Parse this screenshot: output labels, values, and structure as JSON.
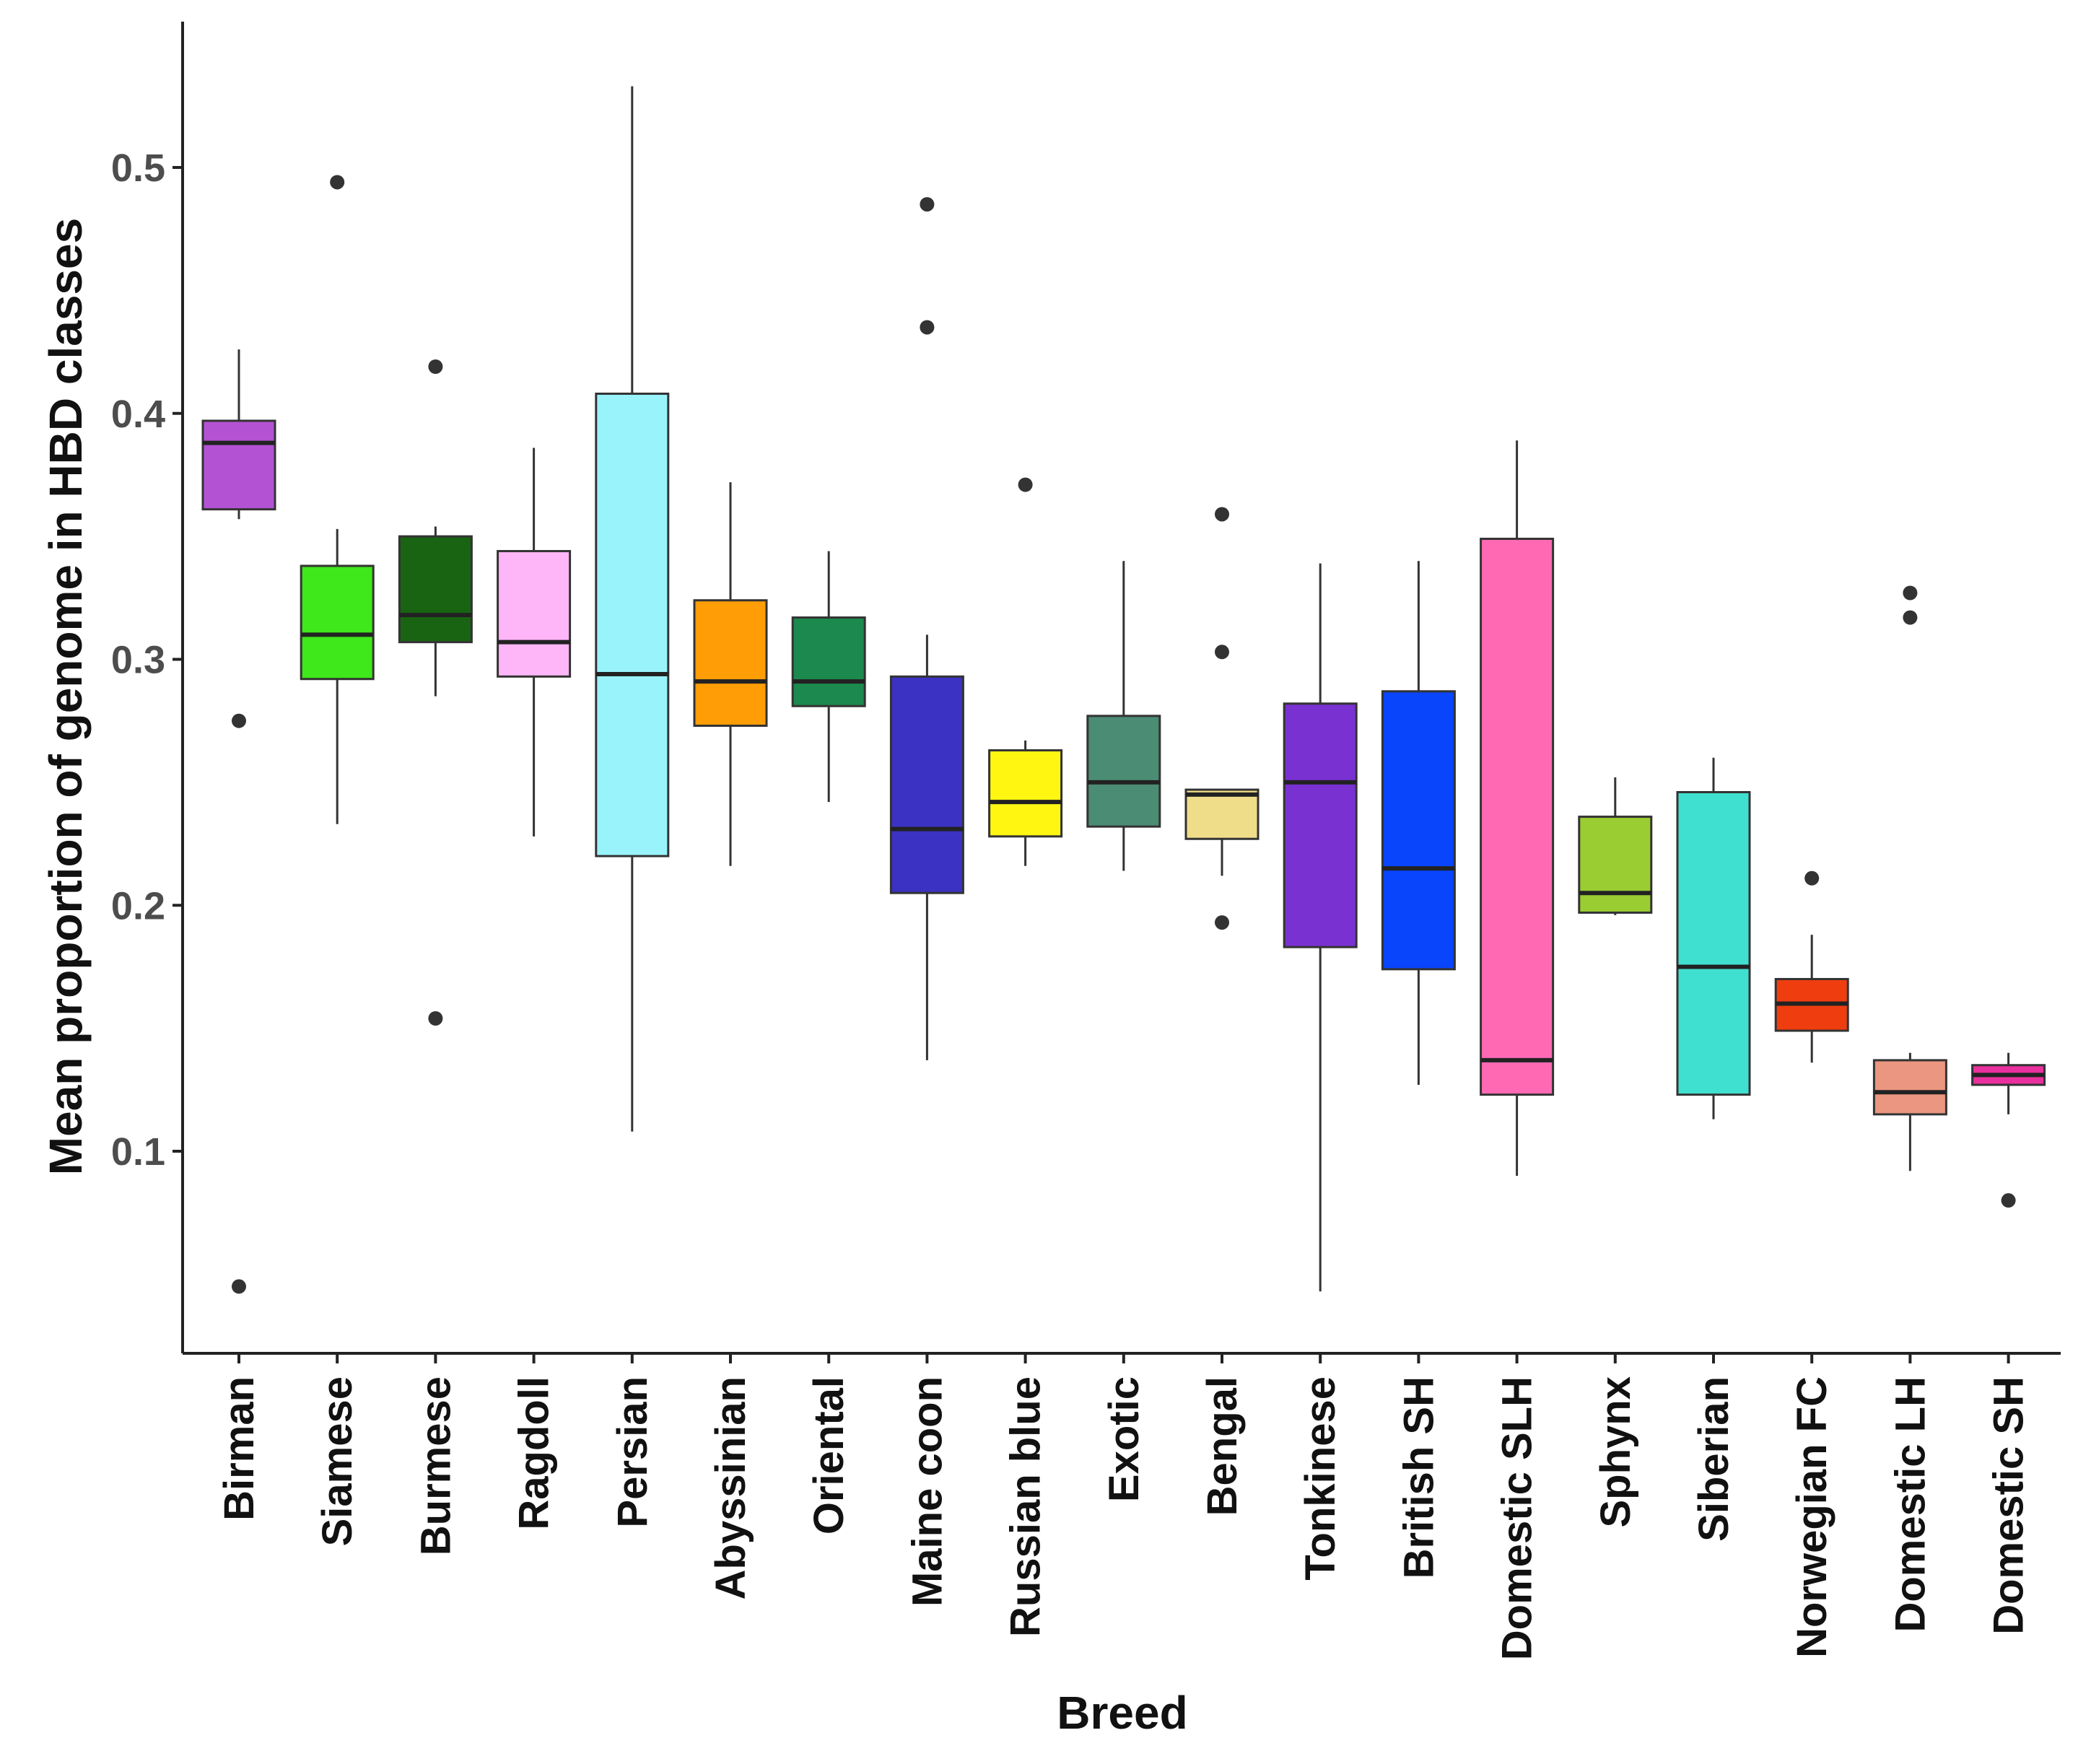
{
  "chart_data": {
    "type": "box",
    "title": "",
    "xlabel": "Breed",
    "ylabel": "Mean proportion of genome in HBD classes",
    "ylim": [
      0.02,
      0.56
    ],
    "yticks": [
      0.1,
      0.2,
      0.3,
      0.4,
      0.5
    ],
    "ytick_labels": [
      "0.1",
      "0.2",
      "0.3",
      "0.4",
      "0.5"
    ],
    "grid": false,
    "legend": "none",
    "categories": [
      "Birman",
      "Siamese",
      "Burmese",
      "Ragdoll",
      "Persian",
      "Abyssinian",
      "Oriental",
      "Maine coon",
      "Russian blue",
      "Exotic",
      "Bengal",
      "Tonkinese",
      "British SH",
      "Domestic SLH",
      "Sphynx",
      "Siberian",
      "Norwegian FC",
      "Domestic LH",
      "Domestic SH"
    ],
    "boxes": [
      {
        "name": "Birman",
        "color": "#b452d4",
        "whisker_low": 0.357,
        "q1": 0.361,
        "median": 0.388,
        "q3": 0.397,
        "whisker_high": 0.426,
        "outliers": [
          0.275,
          0.045
        ]
      },
      {
        "name": "Siamese",
        "color": "#3ee81a",
        "whisker_low": 0.233,
        "q1": 0.292,
        "median": 0.31,
        "q3": 0.338,
        "whisker_high": 0.353,
        "outliers": [
          0.494
        ]
      },
      {
        "name": "Burmese",
        "color": "#186412",
        "whisker_low": 0.285,
        "q1": 0.307,
        "median": 0.318,
        "q3": 0.35,
        "whisker_high": 0.354,
        "outliers": [
          0.419,
          0.154
        ]
      },
      {
        "name": "Ragdoll",
        "color": "#ffb6f8",
        "whisker_low": 0.228,
        "q1": 0.293,
        "median": 0.307,
        "q3": 0.344,
        "whisker_high": 0.386,
        "outliers": []
      },
      {
        "name": "Persian",
        "color": "#99f3fb",
        "whisker_low": 0.108,
        "q1": 0.22,
        "median": 0.294,
        "q3": 0.408,
        "whisker_high": 0.533,
        "outliers": []
      },
      {
        "name": "Abyssinian",
        "color": "#ff9d07",
        "whisker_low": 0.216,
        "q1": 0.273,
        "median": 0.291,
        "q3": 0.324,
        "whisker_high": 0.372,
        "outliers": []
      },
      {
        "name": "Oriental",
        "color": "#1c8a4e",
        "whisker_low": 0.242,
        "q1": 0.281,
        "median": 0.291,
        "q3": 0.317,
        "whisker_high": 0.344,
        "outliers": []
      },
      {
        "name": "Maine coon",
        "color": "#3b32c3",
        "whisker_low": 0.137,
        "q1": 0.205,
        "median": 0.231,
        "q3": 0.293,
        "whisker_high": 0.31,
        "outliers": [
          0.485,
          0.435
        ]
      },
      {
        "name": "Russian blue",
        "color": "#fff712",
        "whisker_low": 0.216,
        "q1": 0.228,
        "median": 0.242,
        "q3": 0.263,
        "whisker_high": 0.267,
        "outliers": [
          0.371
        ]
      },
      {
        "name": "Exotic",
        "color": "#4b8c74",
        "whisker_low": 0.214,
        "q1": 0.232,
        "median": 0.25,
        "q3": 0.277,
        "whisker_high": 0.34,
        "outliers": []
      },
      {
        "name": "Bengal",
        "color": "#f0dd8a",
        "whisker_low": 0.212,
        "q1": 0.227,
        "median": 0.245,
        "q3": 0.247,
        "whisker_high": 0.247,
        "outliers": [
          0.359,
          0.303,
          0.193
        ]
      },
      {
        "name": "Tonkinese",
        "color": "#7a31d1",
        "whisker_low": 0.043,
        "q1": 0.183,
        "median": 0.25,
        "q3": 0.282,
        "whisker_high": 0.339,
        "outliers": []
      },
      {
        "name": "British SH",
        "color": "#0845fb",
        "whisker_low": 0.127,
        "q1": 0.174,
        "median": 0.215,
        "q3": 0.287,
        "whisker_high": 0.34,
        "outliers": []
      },
      {
        "name": "Domestic SLH",
        "color": "#ff69b4",
        "whisker_low": 0.09,
        "q1": 0.123,
        "median": 0.137,
        "q3": 0.349,
        "whisker_high": 0.389,
        "outliers": []
      },
      {
        "name": "Sphynx",
        "color": "#9acd32",
        "whisker_low": 0.196,
        "q1": 0.197,
        "median": 0.205,
        "q3": 0.236,
        "whisker_high": 0.252,
        "outliers": []
      },
      {
        "name": "Siberian",
        "color": "#40e0d0",
        "whisker_low": 0.113,
        "q1": 0.123,
        "median": 0.175,
        "q3": 0.246,
        "whisker_high": 0.26,
        "outliers": []
      },
      {
        "name": "Norwegian FC",
        "color": "#f03d10",
        "whisker_low": 0.136,
        "q1": 0.149,
        "median": 0.16,
        "q3": 0.17,
        "whisker_high": 0.188,
        "outliers": [
          0.211
        ]
      },
      {
        "name": "Domestic LH",
        "color": "#eb9680",
        "whisker_low": 0.092,
        "q1": 0.115,
        "median": 0.124,
        "q3": 0.137,
        "whisker_high": 0.14,
        "outliers": [
          0.327,
          0.317
        ]
      },
      {
        "name": "Domestic SH",
        "color": "#e9309e",
        "whisker_low": 0.115,
        "q1": 0.127,
        "median": 0.131,
        "q3": 0.135,
        "whisker_high": 0.14,
        "outliers": [
          0.08
        ]
      }
    ]
  }
}
